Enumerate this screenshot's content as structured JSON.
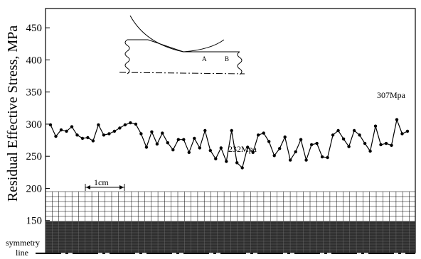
{
  "chart_data": {
    "type": "line",
    "ylabel": "Residual Effective Stress, MPa",
    "ylim": [
      100,
      480
    ],
    "yticks": [
      150,
      200,
      250,
      300,
      350,
      400,
      450
    ],
    "grid": false,
    "series": [
      {
        "values": [
          299,
          281,
          291,
          289,
          296,
          283,
          278,
          279,
          274,
          299,
          283,
          285,
          289,
          294,
          299,
          302,
          300,
          285,
          264,
          288,
          269,
          286,
          271,
          260,
          276,
          276,
          256,
          278,
          263,
          290,
          259,
          246,
          263,
          242,
          290,
          240,
          232,
          264,
          256,
          283,
          286,
          273,
          251,
          262,
          280,
          244,
          257,
          276,
          244,
          268,
          270,
          249,
          248,
          283,
          290,
          277,
          265,
          290,
          283,
          270,
          258,
          297,
          268,
          270,
          267,
          307,
          285,
          289
        ]
      }
    ],
    "annotations": [
      {
        "text": "307Mpa",
        "target": "max"
      },
      {
        "text": "232Mpa",
        "target": "min"
      }
    ]
  },
  "inset": {
    "label_a": "A",
    "label_b": "B"
  },
  "mesh": {
    "scale_label": "1cm"
  },
  "symmetry": {
    "line1": "symmetry",
    "line2": "line"
  }
}
